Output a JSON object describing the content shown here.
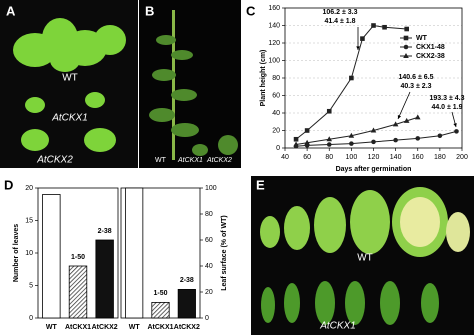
{
  "panels": {
    "A": {
      "label": "A",
      "texts": [
        "WT",
        "AtCKX1",
        "AtCKX2"
      ]
    },
    "B": {
      "label": "B",
      "texts": [
        "WT",
        "AtCKX1",
        "AtCKX2"
      ]
    },
    "C": {
      "label": "C"
    },
    "D": {
      "label": "D"
    },
    "E": {
      "label": "E",
      "texts": [
        "WT",
        "AtCKX1"
      ]
    }
  },
  "chart_data": [
    {
      "type": "line",
      "ylabel": "Plant height (cm)",
      "xlabel": "Days after germination",
      "xlim": [
        40,
        200
      ],
      "xticks": [
        40,
        60,
        80,
        100,
        120,
        140,
        160,
        180,
        200
      ],
      "ylim": [
        0,
        160
      ],
      "yticks": [
        0,
        20,
        40,
        60,
        80,
        100,
        120,
        140,
        160
      ],
      "grid": true,
      "legend": "upper right",
      "series": [
        {
          "name": "WT",
          "color": "#222222",
          "marker": "square",
          "x": [
            50,
            60,
            80,
            100,
            110,
            120,
            130,
            150
          ],
          "values": [
            10,
            20,
            42,
            80,
            125,
            140,
            138,
            136
          ]
        },
        {
          "name": "CKX1-48",
          "color": "#222222",
          "marker": "circle",
          "x": [
            50,
            60,
            80,
            100,
            120,
            140,
            160,
            180,
            195
          ],
          "values": [
            2,
            3,
            4,
            5,
            7,
            9,
            11,
            14,
            19
          ]
        },
        {
          "name": "CKX2-38",
          "color": "#222222",
          "marker": "triangle",
          "x": [
            50,
            60,
            80,
            100,
            120,
            140,
            150,
            160
          ],
          "values": [
            4,
            6,
            10,
            14,
            20,
            27,
            31,
            35
          ]
        }
      ],
      "annotations": [
        [
          "106.2 ± 3.3",
          "41.4 ± 1.8"
        ],
        [
          "140.6 ± 6.5",
          "40.3 ± 2.3"
        ],
        [
          "193.3 ± 4.3",
          "44.0 ± 1.9"
        ]
      ]
    },
    {
      "type": "bar",
      "ylabel": "Number of leaves",
      "y_axis_side": "left",
      "categories": [
        "WT",
        "AtCKX1",
        "AtCKX2"
      ],
      "values": [
        19,
        8,
        12
      ],
      "fills": [
        "#ffffff",
        "hatch",
        "#111111"
      ],
      "ylim": [
        0,
        20
      ],
      "yticks": [
        0,
        5,
        10,
        15,
        20
      ],
      "annotations": [
        {
          "category": "AtCKX1",
          "text": "1-50"
        },
        {
          "category": "AtCKX2",
          "text": "2-38"
        }
      ]
    },
    {
      "type": "bar",
      "ylabel": "Leaf surface (% of WT)",
      "y_axis_side": "right",
      "categories": [
        "WT",
        "AtCKX1",
        "AtCKX2"
      ],
      "values": [
        100,
        12,
        22
      ],
      "fills": [
        "#ffffff",
        "hatch",
        "#111111"
      ],
      "ylim": [
        0,
        100
      ],
      "yticks": [
        0,
        20,
        40,
        60,
        80,
        100
      ],
      "annotations": [
        {
          "category": "AtCKX1",
          "text": "1-50"
        },
        {
          "category": "AtCKX2",
          "text": "2-38"
        }
      ]
    }
  ]
}
